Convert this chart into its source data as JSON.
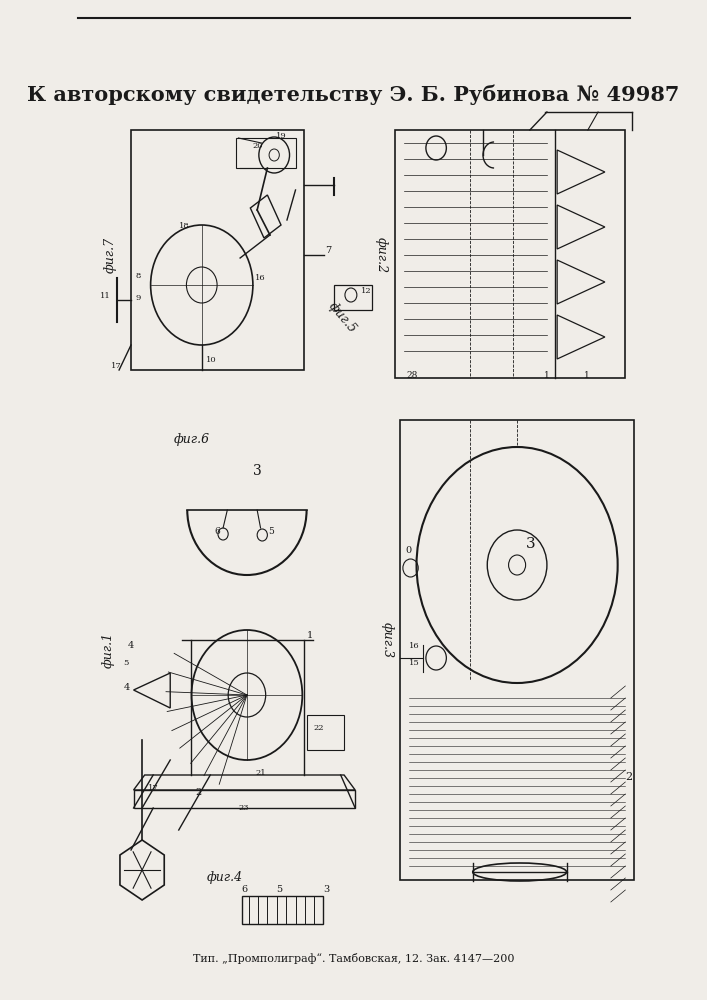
{
  "title_line": "К авторскому свидетельству Э. Б. Рубинова № 49987",
  "footer_line": "Тип. „Промполиграф“. Тамбовская, 12. Зак. 4147—200",
  "fig1_label": "фиг.1",
  "fig2_label": "фиг.2",
  "fig3_label": "фиг.3",
  "fig4_label": "фиг.4",
  "fig5_label": "фиг.5",
  "fig6_label": "фиг.6",
  "fig7_label": "фиг.7",
  "bg_color": "#f0ede8",
  "line_color": "#1a1a1a",
  "title_fontsize": 15,
  "footer_fontsize": 8,
  "fig_label_fontsize": 9
}
